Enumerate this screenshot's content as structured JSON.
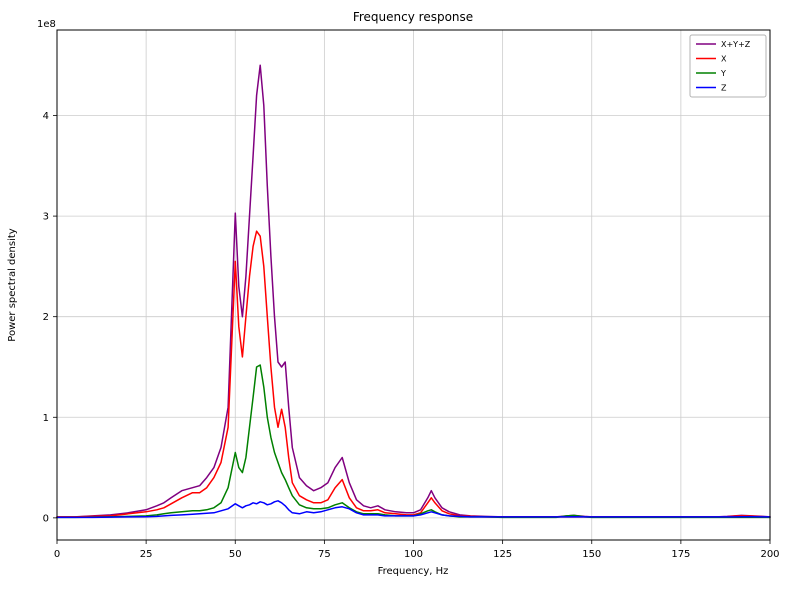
{
  "figure": {
    "background": "#ffffff"
  },
  "chart_data": {
    "type": "line",
    "title": "Frequency response",
    "xlabel": "Frequency, Hz",
    "ylabel": "Power spectral density",
    "offset_text": "1e8",
    "values_unit": "1e8",
    "xlim": [
      0,
      200
    ],
    "ylim": [
      -0.22,
      4.85
    ],
    "x_ticks": [
      0,
      25,
      50,
      75,
      100,
      125,
      150,
      175,
      200
    ],
    "y_ticks": [
      0,
      1,
      2,
      3,
      4
    ],
    "grid": true,
    "legend_position": "upper right",
    "colors": {
      "grid": "#cccccc",
      "axis": "#000000",
      "text": "#000000",
      "legend_border": "#b3b3b3"
    },
    "x": [
      0,
      5,
      10,
      15,
      20,
      25,
      28,
      30,
      32,
      35,
      38,
      40,
      42,
      44,
      46,
      48,
      50,
      51,
      52,
      53,
      54,
      55,
      56,
      57,
      58,
      59,
      60,
      61,
      62,
      63,
      64,
      65,
      66,
      68,
      70,
      72,
      74,
      76,
      78,
      80,
      82,
      84,
      86,
      88,
      90,
      92,
      95,
      98,
      100,
      102,
      104,
      105,
      106,
      108,
      110,
      113,
      116,
      120,
      125,
      130,
      135,
      140,
      143,
      145,
      148,
      150,
      155,
      160,
      165,
      170,
      175,
      180,
      185,
      188,
      190,
      192,
      195,
      198,
      200
    ],
    "series": [
      {
        "name": "X+Y+Z",
        "color": "#800080",
        "values": [
          0.01,
          0.01,
          0.02,
          0.03,
          0.05,
          0.08,
          0.12,
          0.15,
          0.2,
          0.27,
          0.3,
          0.32,
          0.4,
          0.5,
          0.7,
          1.1,
          3.03,
          2.3,
          2.0,
          2.4,
          3.0,
          3.6,
          4.2,
          4.5,
          4.1,
          3.3,
          2.6,
          2.0,
          1.55,
          1.5,
          1.55,
          1.1,
          0.7,
          0.4,
          0.32,
          0.27,
          0.3,
          0.35,
          0.5,
          0.6,
          0.35,
          0.18,
          0.12,
          0.1,
          0.12,
          0.08,
          0.06,
          0.05,
          0.05,
          0.08,
          0.2,
          0.27,
          0.2,
          0.1,
          0.06,
          0.03,
          0.02,
          0.015,
          0.01,
          0.01,
          0.01,
          0.01,
          0.02,
          0.025,
          0.015,
          0.01,
          0.01,
          0.01,
          0.01,
          0.01,
          0.01,
          0.01,
          0.01,
          0.015,
          0.02,
          0.025,
          0.02,
          0.015,
          0.01
        ]
      },
      {
        "name": "X",
        "color": "#ff0000",
        "values": [
          0.01,
          0.01,
          0.015,
          0.02,
          0.04,
          0.06,
          0.08,
          0.1,
          0.14,
          0.2,
          0.25,
          0.25,
          0.3,
          0.4,
          0.55,
          0.9,
          2.55,
          1.9,
          1.6,
          2.0,
          2.4,
          2.7,
          2.85,
          2.8,
          2.5,
          2.0,
          1.5,
          1.1,
          0.9,
          1.08,
          0.9,
          0.6,
          0.35,
          0.22,
          0.18,
          0.15,
          0.15,
          0.18,
          0.3,
          0.38,
          0.2,
          0.1,
          0.07,
          0.07,
          0.08,
          0.05,
          0.04,
          0.03,
          0.03,
          0.05,
          0.15,
          0.2,
          0.15,
          0.07,
          0.04,
          0.02,
          0.015,
          0.01,
          0.01,
          0.01,
          0.01,
          0.01,
          0.01,
          0.01,
          0.01,
          0.01,
          0.01,
          0.01,
          0.01,
          0.01,
          0.01,
          0.01,
          0.01,
          0.012,
          0.018,
          0.02,
          0.018,
          0.012,
          0.01
        ]
      },
      {
        "name": "Y",
        "color": "#008000",
        "values": [
          0.005,
          0.005,
          0.008,
          0.01,
          0.015,
          0.02,
          0.03,
          0.04,
          0.05,
          0.06,
          0.07,
          0.07,
          0.08,
          0.1,
          0.15,
          0.3,
          0.65,
          0.5,
          0.45,
          0.6,
          0.9,
          1.2,
          1.5,
          1.52,
          1.3,
          1.0,
          0.8,
          0.65,
          0.55,
          0.45,
          0.38,
          0.3,
          0.22,
          0.13,
          0.1,
          0.09,
          0.09,
          0.1,
          0.13,
          0.15,
          0.1,
          0.06,
          0.04,
          0.04,
          0.04,
          0.03,
          0.02,
          0.02,
          0.02,
          0.04,
          0.07,
          0.08,
          0.06,
          0.03,
          0.02,
          0.01,
          0.01,
          0.01,
          0.005,
          0.005,
          0.005,
          0.005,
          0.02,
          0.025,
          0.01,
          0.005,
          0.005,
          0.005,
          0.005,
          0.005,
          0.005,
          0.005,
          0.005,
          0.005,
          0.005,
          0.005,
          0.005,
          0.005,
          0.005
        ]
      },
      {
        "name": "Z",
        "color": "#0000ff",
        "values": [
          0.005,
          0.005,
          0.005,
          0.008,
          0.01,
          0.012,
          0.015,
          0.02,
          0.025,
          0.03,
          0.035,
          0.04,
          0.045,
          0.05,
          0.07,
          0.09,
          0.14,
          0.12,
          0.1,
          0.12,
          0.13,
          0.15,
          0.14,
          0.16,
          0.15,
          0.13,
          0.14,
          0.16,
          0.17,
          0.15,
          0.12,
          0.08,
          0.05,
          0.04,
          0.06,
          0.05,
          0.06,
          0.08,
          0.1,
          0.11,
          0.09,
          0.05,
          0.03,
          0.03,
          0.03,
          0.02,
          0.02,
          0.02,
          0.02,
          0.03,
          0.05,
          0.06,
          0.05,
          0.03,
          0.02,
          0.015,
          0.01,
          0.01,
          0.01,
          0.01,
          0.01,
          0.01,
          0.01,
          0.012,
          0.01,
          0.01,
          0.01,
          0.01,
          0.01,
          0.01,
          0.01,
          0.01,
          0.01,
          0.01,
          0.01,
          0.012,
          0.012,
          0.01,
          0.01
        ]
      }
    ]
  }
}
